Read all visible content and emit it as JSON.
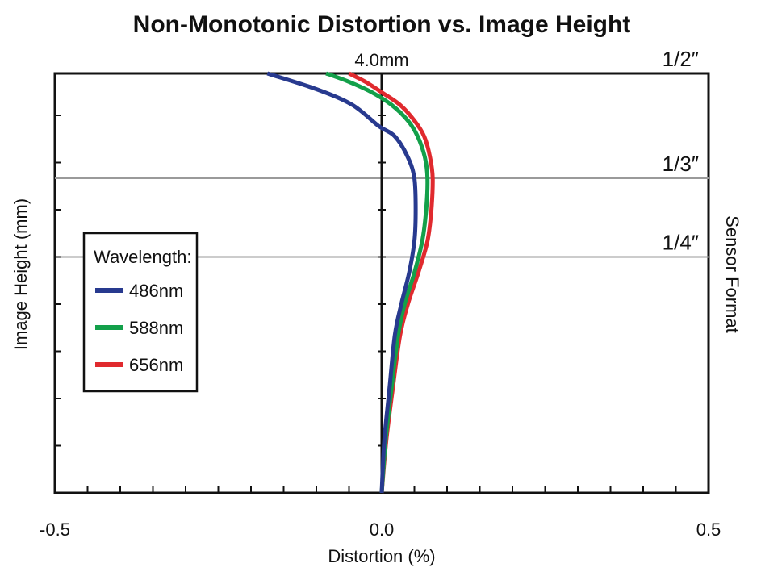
{
  "chart_data": {
    "type": "line",
    "title": "Non-Monotonic Distortion vs. Image Height",
    "xlabel": "Distortion (%)",
    "ylabel": "Image Height (mm)",
    "y2label": "Sensor Format",
    "xlim": [
      -0.5,
      0.5
    ],
    "ylim": [
      0,
      4.0
    ],
    "x_tick_labels": [
      "-0.5",
      "0.0",
      "0.5"
    ],
    "x_tick_values": [
      -0.5,
      0.0,
      0.5
    ],
    "y_top_label": "4.0mm",
    "legend_title": "Wavelength:",
    "sensor_formats": [
      {
        "label": "1/2″",
        "y": 4.0
      },
      {
        "label": "1/3″",
        "y": 3.0
      },
      {
        "label": "1/4″",
        "y": 2.25
      }
    ],
    "series": [
      {
        "name": "486nm",
        "color": "#283a8f",
        "x": [
          0.0,
          0.004,
          0.012,
          0.02,
          0.03,
          0.042,
          0.05,
          0.052,
          0.05,
          0.04,
          0.02,
          -0.005,
          -0.045,
          -0.1,
          -0.175
        ],
        "y": [
          0.0,
          0.5,
          1.0,
          1.5,
          1.8,
          2.1,
          2.4,
          2.7,
          3.0,
          3.2,
          3.4,
          3.5,
          3.7,
          3.85,
          4.0
        ]
      },
      {
        "name": "588nm",
        "color": "#13a04a",
        "x": [
          0.0,
          0.006,
          0.015,
          0.025,
          0.035,
          0.05,
          0.062,
          0.068,
          0.07,
          0.066,
          0.055,
          0.04,
          0.015,
          -0.015,
          -0.05,
          -0.085
        ],
        "y": [
          0.0,
          0.5,
          1.0,
          1.5,
          1.8,
          2.1,
          2.4,
          2.7,
          3.0,
          3.2,
          3.4,
          3.55,
          3.7,
          3.82,
          3.92,
          4.0
        ]
      },
      {
        "name": "656nm",
        "color": "#e02a2e",
        "x": [
          0.0,
          0.007,
          0.017,
          0.028,
          0.04,
          0.056,
          0.07,
          0.076,
          0.078,
          0.074,
          0.065,
          0.05,
          0.028,
          0.0,
          -0.025,
          -0.05
        ],
        "y": [
          0.0,
          0.5,
          1.0,
          1.5,
          1.8,
          2.1,
          2.4,
          2.7,
          3.0,
          3.2,
          3.4,
          3.55,
          3.7,
          3.82,
          3.92,
          4.0
        ]
      }
    ],
    "grid": false,
    "legend_position": "left-middle"
  }
}
